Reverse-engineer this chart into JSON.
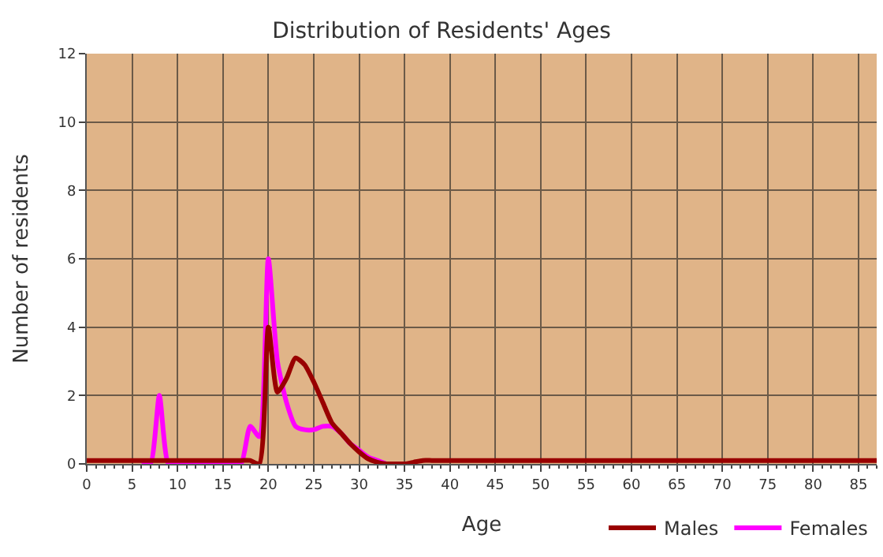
{
  "chart_data": {
    "type": "line",
    "title": "Distribution of Residents' Ages",
    "xlabel": "Age",
    "ylabel": "Number of residents",
    "x": [
      0,
      1,
      2,
      3,
      4,
      5,
      6,
      7,
      8,
      9,
      10,
      11,
      12,
      13,
      14,
      15,
      16,
      17,
      18,
      19,
      20,
      21,
      22,
      23,
      24,
      25,
      26,
      27,
      28,
      29,
      30,
      31,
      32,
      33,
      34,
      35,
      36,
      37,
      38,
      39,
      40,
      41,
      42,
      43,
      44,
      45,
      46,
      47,
      48,
      49,
      50,
      51,
      52,
      53,
      54,
      55,
      56,
      57,
      58,
      59,
      60,
      61,
      62,
      63,
      64,
      65,
      66,
      67,
      68,
      69,
      70,
      71,
      72,
      73,
      74,
      75,
      76,
      77,
      78,
      79,
      80,
      81,
      82,
      83,
      84,
      85,
      86,
      87
    ],
    "series": [
      {
        "name": "Males",
        "color": "#990000",
        "values": [
          0.1,
          0.1,
          0.1,
          0.1,
          0.1,
          0.1,
          0.1,
          0.1,
          0.1,
          0.1,
          0.1,
          0.1,
          0.1,
          0.1,
          0.1,
          0.1,
          0.1,
          0.1,
          0.1,
          0,
          4,
          2.1,
          2.5,
          3.1,
          2.9,
          2.4,
          1.8,
          1.2,
          0.9,
          0.6,
          0.35,
          0.15,
          0.05,
          0,
          0,
          0,
          0.05,
          0.1,
          0.1,
          0.1,
          0.1,
          0.1,
          0.1,
          0.1,
          0.1,
          0.1,
          0.1,
          0.1,
          0.1,
          0.1,
          0.1,
          0.1,
          0.1,
          0.1,
          0.1,
          0.1,
          0.1,
          0.1,
          0.1,
          0.1,
          0.1,
          0.1,
          0.1,
          0.1,
          0.1,
          0.1,
          0.1,
          0.1,
          0.1,
          0.1,
          0.1,
          0.1,
          0.1,
          0.1,
          0.1,
          0.1,
          0.1,
          0.1,
          0.1,
          0.1,
          0.1,
          0.1,
          0.1,
          0.1,
          0.1,
          0.1,
          0.1,
          0.1
        ]
      },
      {
        "name": "Females",
        "color": "#ff00ff",
        "values": [
          null,
          null,
          null,
          null,
          null,
          null,
          0.1,
          0,
          2,
          0,
          0,
          0,
          0,
          0,
          0,
          0,
          0,
          0,
          1.1,
          0.8,
          6,
          3,
          1.8,
          1.1,
          1,
          1,
          1.1,
          1.1,
          0.9,
          0.6,
          0.4,
          0.2,
          0.1,
          0,
          null,
          null,
          null,
          null,
          null,
          null,
          null,
          null,
          null,
          null,
          null,
          null,
          null,
          null,
          null,
          null,
          null,
          null,
          null,
          null,
          null,
          null,
          null,
          null,
          null,
          null,
          null,
          null,
          null,
          null,
          null,
          null,
          null,
          null,
          null,
          null,
          null,
          null,
          null,
          null,
          null,
          null,
          null,
          null,
          null,
          null,
          null,
          null,
          null,
          null,
          null,
          null,
          null,
          null
        ]
      }
    ],
    "xlim": [
      0,
      87
    ],
    "xticks": [
      0,
      5,
      10,
      15,
      20,
      25,
      30,
      35,
      40,
      45,
      50,
      55,
      60,
      65,
      70,
      75,
      80,
      85
    ],
    "ylim": [
      0,
      12
    ],
    "yticks": [
      0,
      2,
      4,
      6,
      8,
      10,
      12
    ],
    "grid": true,
    "legend": "bottom right",
    "marker": "none",
    "line_style": "solid"
  }
}
